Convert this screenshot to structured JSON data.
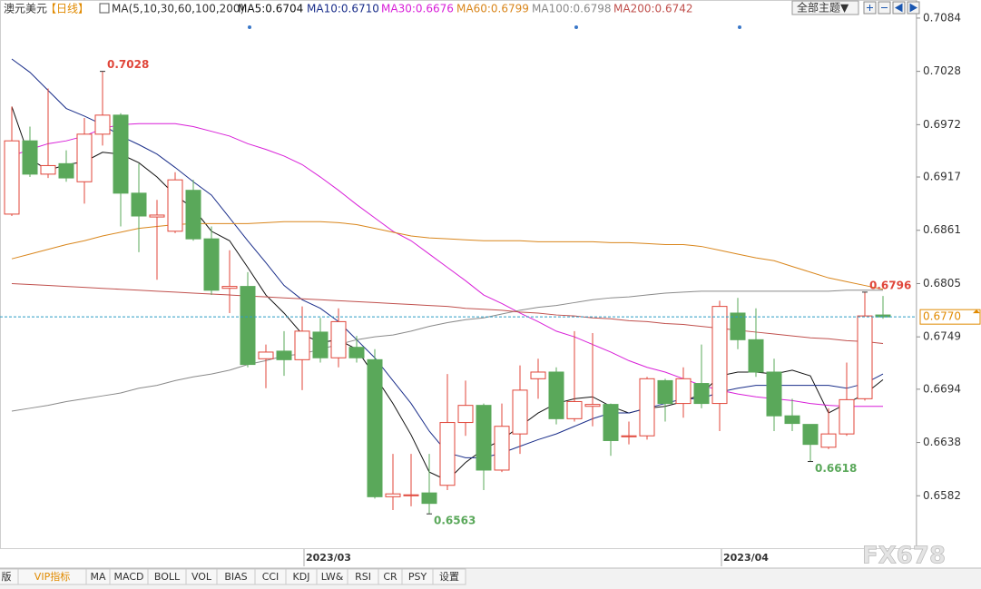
{
  "chart_data": {
    "type": "candlestick",
    "title": "澳元美元",
    "period": "【日线】",
    "ma_label": "MA(5,10,30,60,100,200)",
    "categories": [
      null,
      null,
      null,
      null,
      null,
      null,
      null,
      null,
      null,
      null,
      null,
      null,
      null,
      null,
      null,
      null,
      "2023/03",
      null,
      null,
      null,
      null,
      null,
      null,
      null,
      null,
      null,
      null,
      null,
      null,
      null,
      null,
      null,
      null,
      null,
      null,
      null,
      null,
      null,
      null,
      "2023/04",
      null,
      null,
      null,
      null,
      null,
      null,
      null,
      null,
      null
    ],
    "open": [
      0.6878,
      0.6955,
      0.692,
      0.6931,
      0.6912,
      0.6962,
      0.6982,
      0.69,
      0.6875,
      0.686,
      0.6903,
      0.6852,
      0.68,
      0.6802,
      0.6726,
      0.6734,
      0.6725,
      0.6754,
      0.6727,
      0.6738,
      0.6725,
      0.6581,
      0.6582,
      0.6585,
      0.6593,
      0.6659,
      0.6677,
      0.6609,
      0.6647,
      0.6705,
      0.6712,
      0.6663,
      0.6676,
      0.6678,
      0.6644,
      0.6645,
      0.6703,
      0.6679,
      0.67,
      0.6679,
      0.6774,
      0.6746,
      0.6712,
      0.6666,
      0.6657,
      0.6633,
      0.6647,
      0.6684,
      0.6772
    ],
    "high": [
      0.6991,
      0.697,
      0.701,
      0.6945,
      0.6979,
      0.7028,
      0.6984,
      0.6931,
      0.6893,
      0.6922,
      0.6914,
      0.6865,
      0.684,
      0.6817,
      0.6741,
      0.6755,
      0.6781,
      0.6769,
      0.6779,
      0.675,
      0.6736,
      0.6626,
      0.6626,
      0.6626,
      0.671,
      0.6703,
      0.6679,
      0.6679,
      0.6719,
      0.6726,
      0.6717,
      0.6755,
      0.6753,
      0.6679,
      0.666,
      0.6707,
      0.6705,
      0.6717,
      0.6741,
      0.6787,
      0.679,
      0.6779,
      0.6726,
      0.6684,
      0.6657,
      0.6674,
      0.6722,
      0.6796,
      0.6792
    ],
    "low": [
      0.6876,
      0.6917,
      0.6916,
      0.6912,
      0.6889,
      0.695,
      0.6865,
      0.6838,
      0.6809,
      0.6858,
      0.685,
      0.6793,
      0.6774,
      0.6717,
      0.6695,
      0.6708,
      0.6693,
      0.6722,
      0.6717,
      0.6722,
      0.6579,
      0.6567,
      0.6571,
      0.6563,
      0.6588,
      0.6645,
      0.6588,
      0.6607,
      0.6626,
      0.6684,
      0.6657,
      0.666,
      0.6655,
      0.6624,
      0.6636,
      0.6641,
      0.666,
      0.6664,
      0.6674,
      0.665,
      0.6736,
      0.6707,
      0.665,
      0.665,
      0.6618,
      0.6631,
      0.6645,
      0.6682,
      0.6768
    ],
    "close": [
      0.6955,
      0.692,
      0.6929,
      0.6916,
      0.6962,
      0.6982,
      0.69,
      0.6876,
      0.6877,
      0.6914,
      0.6852,
      0.6798,
      0.6802,
      0.672,
      0.6733,
      0.6725,
      0.6755,
      0.6727,
      0.6765,
      0.6727,
      0.6581,
      0.6584,
      0.6583,
      0.6574,
      0.6659,
      0.6677,
      0.6609,
      0.6655,
      0.6693,
      0.6712,
      0.6663,
      0.6681,
      0.6678,
      0.664,
      0.6645,
      0.6705,
      0.6679,
      0.6705,
      0.6679,
      0.6781,
      0.6746,
      0.6712,
      0.6666,
      0.6658,
      0.6636,
      0.6647,
      0.6683,
      0.6771,
      0.677
    ],
    "up_color": "#e0463a",
    "down_color": "#5aa85a",
    "series": [
      {
        "name": "MA5",
        "legend_label": "MA5:0.6704",
        "color": "#111111",
        "values": [
          0.6991,
          0.6936,
          0.6924,
          0.693,
          0.6933,
          0.6943,
          0.6941,
          0.6932,
          0.6917,
          0.6898,
          0.6884,
          0.686,
          0.685,
          0.6822,
          0.6793,
          0.6774,
          0.6752,
          0.6743,
          0.6746,
          0.6736,
          0.6708,
          0.6679,
          0.6646,
          0.6607,
          0.6598,
          0.6617,
          0.6631,
          0.6641,
          0.6655,
          0.6669,
          0.6679,
          0.6684,
          0.6686,
          0.6676,
          0.6669,
          0.6674,
          0.6676,
          0.6681,
          0.6689,
          0.6708,
          0.6712,
          0.6712,
          0.671,
          0.6714,
          0.6708,
          0.6669,
          0.6679,
          0.6689,
          0.6704
        ]
      },
      {
        "name": "MA10",
        "legend_label": "MA10:0.6710",
        "color": "#1a2e8a",
        "values": [
          0.7041,
          0.7027,
          0.7008,
          0.6989,
          0.6981,
          0.6972,
          0.696,
          0.6951,
          0.6941,
          0.6927,
          0.6912,
          0.6898,
          0.6874,
          0.685,
          0.6827,
          0.6803,
          0.6788,
          0.6779,
          0.6765,
          0.6746,
          0.6727,
          0.6703,
          0.6679,
          0.665,
          0.6627,
          0.6622,
          0.6622,
          0.6627,
          0.6634,
          0.6641,
          0.6647,
          0.6655,
          0.6663,
          0.6669,
          0.6669,
          0.6674,
          0.6679,
          0.6684,
          0.6684,
          0.6691,
          0.6695,
          0.6698,
          0.6698,
          0.6698,
          0.6698,
          0.6698,
          0.6695,
          0.67,
          0.671
        ]
      },
      {
        "name": "MA30",
        "legend_label": "MA30:0.6676",
        "color": "#d81fd8",
        "values": [
          0.6939,
          0.6946,
          0.6952,
          0.6955,
          0.696,
          0.6968,
          0.6972,
          0.6973,
          0.6973,
          0.6973,
          0.697,
          0.6965,
          0.696,
          0.6952,
          0.6946,
          0.6939,
          0.693,
          0.6917,
          0.6903,
          0.6888,
          0.6874,
          0.686,
          0.685,
          0.6836,
          0.6822,
          0.6808,
          0.6793,
          0.6784,
          0.6774,
          0.6765,
          0.6755,
          0.6749,
          0.6741,
          0.6733,
          0.6724,
          0.6717,
          0.6712,
          0.6705,
          0.6698,
          0.6693,
          0.6689,
          0.6686,
          0.6684,
          0.6682,
          0.6679,
          0.6677,
          0.6676,
          0.6676,
          0.6676
        ]
      },
      {
        "name": "MA60",
        "legend_label": "MA60:0.6799",
        "color": "#d9861c",
        "values": [
          0.6831,
          0.6836,
          0.6841,
          0.6846,
          0.685,
          0.6855,
          0.6859,
          0.6863,
          0.6865,
          0.6867,
          0.6868,
          0.6868,
          0.6868,
          0.6868,
          0.6869,
          0.687,
          0.687,
          0.687,
          0.6869,
          0.6867,
          0.6863,
          0.6859,
          0.6855,
          0.6853,
          0.6852,
          0.6851,
          0.685,
          0.685,
          0.685,
          0.6849,
          0.6849,
          0.6849,
          0.6849,
          0.6848,
          0.6848,
          0.6847,
          0.6846,
          0.6846,
          0.6844,
          0.684,
          0.6836,
          0.6832,
          0.6829,
          0.6823,
          0.6817,
          0.6811,
          0.6807,
          0.6803,
          0.6799
        ]
      },
      {
        "name": "MA100",
        "legend_label": "MA100:0.6798",
        "color": "#8a8a8a",
        "values": [
          0.6671,
          0.6674,
          0.6677,
          0.6681,
          0.6684,
          0.6687,
          0.669,
          0.6695,
          0.6698,
          0.6703,
          0.6707,
          0.671,
          0.6714,
          0.672,
          0.6724,
          0.6729,
          0.6731,
          0.6736,
          0.6741,
          0.6746,
          0.6749,
          0.6751,
          0.6755,
          0.676,
          0.6764,
          0.6767,
          0.6769,
          0.6773,
          0.6777,
          0.678,
          0.6782,
          0.6785,
          0.6788,
          0.679,
          0.6791,
          0.6793,
          0.6795,
          0.6796,
          0.6797,
          0.6797,
          0.6797,
          0.6797,
          0.6797,
          0.6797,
          0.6797,
          0.6797,
          0.6798,
          0.6798,
          0.6798
        ]
      },
      {
        "name": "MA200",
        "legend_label": "MA200:0.6742",
        "color": "#c0504d",
        "values": [
          0.6805,
          0.6804,
          0.6803,
          0.6802,
          0.6801,
          0.68,
          0.6799,
          0.6798,
          0.6797,
          0.6796,
          0.6795,
          0.6794,
          0.6793,
          0.6792,
          0.6791,
          0.679,
          0.6789,
          0.6788,
          0.6787,
          0.6786,
          0.6785,
          0.6784,
          0.6783,
          0.6782,
          0.6781,
          0.6779,
          0.6778,
          0.6777,
          0.6775,
          0.6774,
          0.6772,
          0.6771,
          0.6769,
          0.6768,
          0.6766,
          0.6765,
          0.6763,
          0.6762,
          0.676,
          0.6758,
          0.6756,
          0.6754,
          0.6752,
          0.675,
          0.6748,
          0.6747,
          0.6745,
          0.6744,
          0.6742
        ]
      }
    ],
    "ylim": [
      0.6526,
      0.7103
    ],
    "yticks": [
      0.7084,
      0.7028,
      0.6972,
      0.6917,
      0.6861,
      0.6805,
      0.6749,
      0.6694,
      0.6638,
      0.6582
    ],
    "current_price": {
      "value": 0.677,
      "label": "0.6770"
    },
    "price_labels": [
      "high.5",
      "low.23",
      "low.44",
      "high.47"
    ]
  },
  "top_button": "全部主题▼",
  "toolbar": [
    "版",
    "VIP指标",
    "MA",
    "MACD",
    "BOLL",
    "VOL",
    "BIAS",
    "CCI",
    "KDJ",
    "LW&",
    "RSI",
    "CR",
    "PSY",
    "设置"
  ],
  "watermark": "FX678"
}
